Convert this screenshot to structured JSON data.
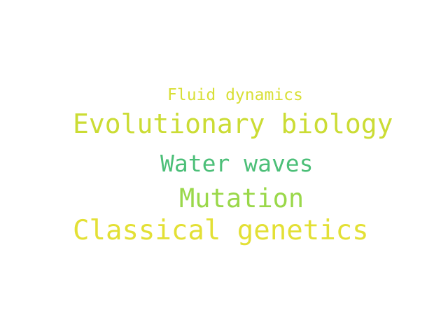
{
  "words": [
    {
      "text": "Fluid dynamics",
      "color": "#d8df35"
    },
    {
      "text": "Evolutionary biology",
      "color": "#cbdc34"
    },
    {
      "text": "Water waves",
      "color": "#4cbf78"
    },
    {
      "text": "Mutation",
      "color": "#9ad84a"
    },
    {
      "text": "Classical genetics",
      "color": "#e3e035"
    }
  ]
}
